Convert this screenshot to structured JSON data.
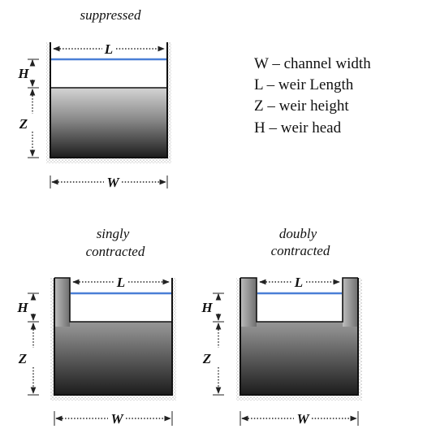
{
  "diagrams": {
    "suppressed": {
      "caption": "suppressed",
      "labels": {
        "L": "L",
        "H": "H",
        "Z": "Z",
        "W": "W"
      }
    },
    "singly": {
      "caption_line1": "singly",
      "caption_line2": "contracted",
      "labels": {
        "L": "L",
        "H": "H",
        "Z": "Z",
        "W": "W"
      }
    },
    "doubly": {
      "caption_line1": "doubly",
      "caption_line2": "contracted",
      "labels": {
        "L": "L",
        "H": "H",
        "Z": "Z",
        "W": "W"
      }
    }
  },
  "legend": {
    "items": [
      "W – channel width",
      "L – weir Length",
      "Z – weir height",
      "H – weir head"
    ]
  },
  "colors": {
    "water": "#4a7fd6",
    "weir_top": "#cfcfcf",
    "weir_bottom": "#1e1e1e",
    "ground": "#a8a8a8"
  }
}
